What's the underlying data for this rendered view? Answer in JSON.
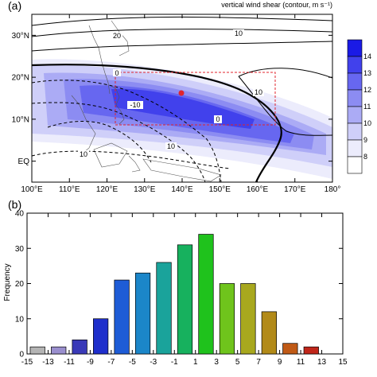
{
  "chart_data": [
    {
      "panel": "(a)",
      "type": "heatmap",
      "title": "vertical wind shear (contour, m s⁻¹)",
      "x_ticks": [
        "100°E",
        "110°E",
        "120°E",
        "130°E",
        "140°E",
        "150°E",
        "160°E",
        "170°E",
        "180°"
      ],
      "y_ticks": [
        "30°N",
        "20°N",
        "10°N",
        "EQ"
      ],
      "xlim": [
        100,
        180
      ],
      "ylim": [
        -5,
        35
      ],
      "colorbar_labels": [
        "14",
        "13",
        "12",
        "11",
        "10",
        "9",
        "8"
      ],
      "colorbar_colors": [
        "#1a1ae6",
        "#4141ec",
        "#6767f0",
        "#8c8cf2",
        "#ababf5",
        "#cfcff9",
        "#ececfc",
        "#ffffff"
      ],
      "contour_labels": [
        "20",
        "10",
        "0",
        "-10",
        "10",
        "0",
        "10",
        "10"
      ],
      "box": {
        "lon": [
          125,
          165
        ],
        "lat": [
          6,
          20
        ]
      },
      "marker": {
        "lon": 140,
        "lat": 14
      }
    },
    {
      "panel": "(b)",
      "type": "bar",
      "ylabel": "Frequency",
      "xlabel": "",
      "x_ticks": [
        "-15",
        "-13",
        "-11",
        "-9",
        "-7",
        "-5",
        "-3",
        "-1",
        "1",
        "3",
        "5",
        "7",
        "9",
        "11",
        "13",
        "15"
      ],
      "categories": [
        -14,
        -12,
        -10,
        -8,
        -6,
        -4,
        -2,
        0,
        2,
        4,
        6,
        8,
        10,
        12
      ],
      "values": [
        2,
        2,
        4,
        10,
        21,
        23,
        26,
        31,
        34,
        20,
        20,
        12,
        3,
        2
      ],
      "colors": [
        "#b4b4b4",
        "#9a8fce",
        "#3a3ab8",
        "#1f2fcc",
        "#1e5cd6",
        "#1b86c9",
        "#1aa39b",
        "#17b15e",
        "#1fc21c",
        "#6fc41c",
        "#a8a81e",
        "#b28a18",
        "#c05a16",
        "#c0261a"
      ],
      "xlim": [
        -15,
        15
      ],
      "ylim": [
        0,
        40
      ],
      "y_ticks": [
        "0",
        "10",
        "20",
        "30",
        "40"
      ]
    }
  ]
}
